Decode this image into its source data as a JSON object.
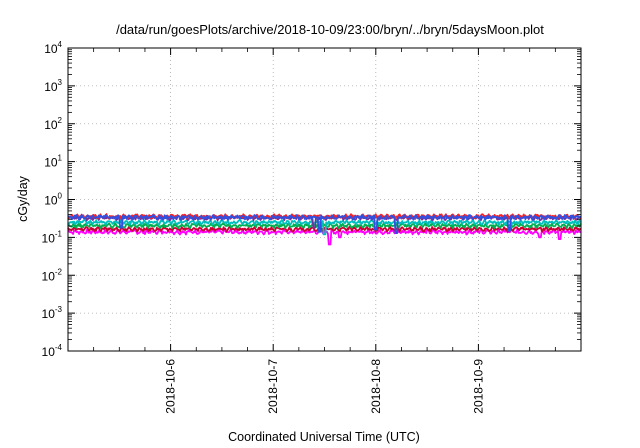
{
  "chart_data": {
    "type": "line",
    "title": "/data/run/goesPlots/archive/2018-10-09/23:00/bryn/../bryn/5daysMoon.plot",
    "xlabel": "Coordinated Universal Time (UTC)",
    "ylabel": "cGy/day",
    "yscale": "log",
    "ylim": [
      0.0001,
      10000
    ],
    "y_ticks": [
      {
        "base": "10",
        "exp": "4"
      },
      {
        "base": "10",
        "exp": "3"
      },
      {
        "base": "10",
        "exp": "2"
      },
      {
        "base": "10",
        "exp": "1"
      },
      {
        "base": "10",
        "exp": "0"
      },
      {
        "base": "10",
        "exp": "-1"
      },
      {
        "base": "10",
        "exp": "-2"
      },
      {
        "base": "10",
        "exp": "-3"
      },
      {
        "base": "10",
        "exp": "-4"
      }
    ],
    "xlim": [
      "2018-10-05 00:00",
      "2018-10-10 00:00"
    ],
    "x_ticks": [
      "2018-10-6",
      "2018-10-7",
      "2018-10-8",
      "2018-10-9"
    ],
    "x_tick_dates": [
      "2018-10-06",
      "2018-10-07",
      "2018-10-08",
      "2018-10-09"
    ],
    "grid": true,
    "series": [
      {
        "color": "#ff00ff",
        "base": 0.14,
        "dips": [
          [
            2.55,
            0.065
          ],
          [
            2.65,
            0.1
          ],
          [
            4.6,
            0.1
          ],
          [
            4.79,
            0.09
          ],
          [
            5.02,
            0.095
          ]
        ]
      },
      {
        "color": "#cc0033",
        "base": 0.165,
        "dips": []
      },
      {
        "color": "#00b050",
        "base": 0.205,
        "dips": []
      },
      {
        "color": "#00bfbf",
        "base": 0.25,
        "dips": [
          [
            2.5,
            0.12
          ]
        ]
      },
      {
        "color": "#7030a0",
        "base": 0.33,
        "dips": [
          [
            2.4,
            0.18
          ]
        ]
      },
      {
        "color": "#ff2020",
        "base": 0.36,
        "dips": []
      },
      {
        "color": "#3050e0",
        "base": 0.34,
        "dips": [
          [
            0.52,
            0.18
          ],
          [
            2.45,
            0.14
          ],
          [
            3.0,
            0.16
          ],
          [
            3.2,
            0.13
          ],
          [
            4.3,
            0.15
          ]
        ]
      }
    ]
  }
}
